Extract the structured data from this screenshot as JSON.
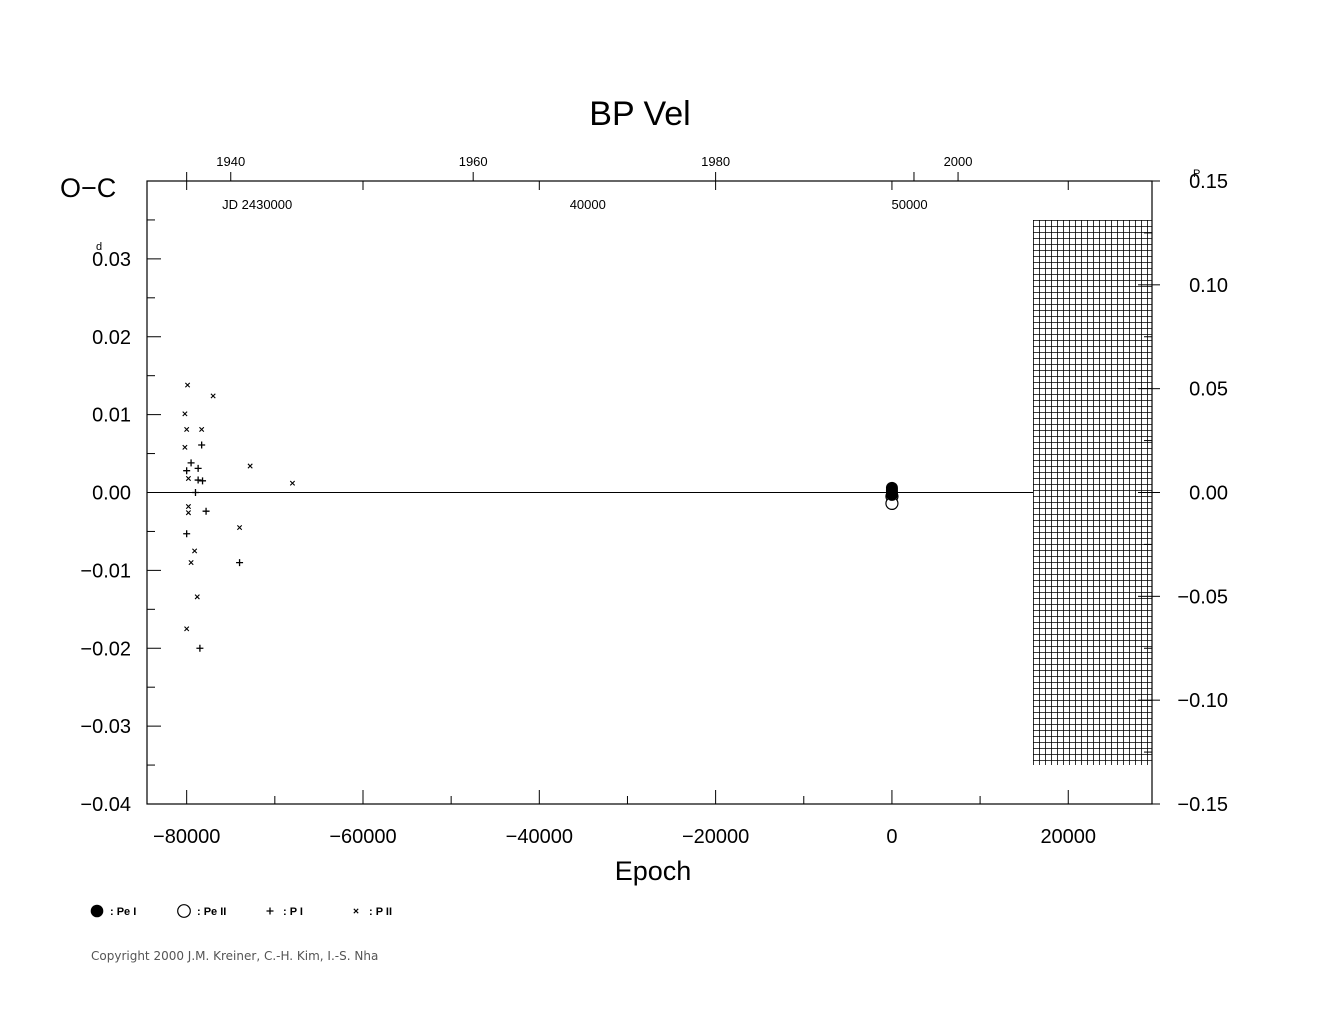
{
  "chart_data": {
    "type": "scatter",
    "title": "BP  Vel",
    "ylabel": "O−C",
    "ylabel_unit": "d",
    "xlabel": "Epoch",
    "xlim": [
      -84500,
      29500
    ],
    "ylim": [
      -0.04,
      0.04
    ],
    "xticks": [
      -80000,
      -60000,
      -40000,
      -20000,
      0,
      20000
    ],
    "xtick_labels": [
      "−80000",
      "−60000",
      "−40000",
      "−20000",
      "0",
      "20000"
    ],
    "yticks": [
      0.03,
      0.02,
      0.01,
      0.0,
      -0.01,
      -0.02,
      -0.03,
      -0.04
    ],
    "ytick_labels": [
      "0.03",
      "0.02",
      "0.01",
      "0.00",
      "−0.01",
      "−0.02",
      "−0.03",
      "−0.04"
    ],
    "right_axis": {
      "unit": "P",
      "lim": [
        -0.15,
        0.15
      ],
      "ticks": [
        0.15,
        0.1,
        0.05,
        0.0,
        -0.05,
        -0.1,
        -0.15
      ],
      "tick_labels": [
        "0.15",
        "0.10",
        "0.05",
        "0.00",
        "−0.05",
        "−0.10",
        "−0.15"
      ]
    },
    "top_year_axis": {
      "labels": [
        {
          "epoch": -75000,
          "text": "1940"
        },
        {
          "epoch": -47500,
          "text": "1960"
        },
        {
          "epoch": -20000,
          "text": "1980"
        },
        {
          "epoch": 7500,
          "text": "2000"
        }
      ],
      "ticks": [
        -80000,
        -75000,
        -47500,
        -20000,
        2500,
        7500
      ]
    },
    "top_jd_axis": {
      "labels": [
        {
          "epoch": -72000,
          "text": "JD  2430000"
        },
        {
          "epoch": -34500,
          "text": "40000"
        },
        {
          "epoch": 2000,
          "text": "50000"
        }
      ]
    },
    "grid_region": {
      "x_from": 16000,
      "x_to": 29500,
      "y_from": -0.035,
      "y_to": 0.035
    },
    "series": [
      {
        "name": "Pe I",
        "marker": "filled-circle",
        "points": [
          [
            0,
            0.0006
          ],
          [
            0,
            0.0003
          ],
          [
            0,
            0.0
          ],
          [
            0,
            -0.0003
          ]
        ]
      },
      {
        "name": "Pe II",
        "marker": "open-circle",
        "points": [
          [
            0,
            -0.0005
          ],
          [
            0,
            -0.0014
          ]
        ]
      },
      {
        "name": "P I",
        "marker": "plus",
        "points": [
          [
            -80000,
            0.0028
          ],
          [
            -79500,
            0.0038
          ],
          [
            -78700,
            0.0031
          ],
          [
            -78300,
            0.0061
          ],
          [
            -78700,
            0.0016
          ],
          [
            -78200,
            0.0015
          ],
          [
            -79000,
            0.0
          ],
          [
            -77800,
            -0.0024
          ],
          [
            -80000,
            -0.0053
          ],
          [
            -74000,
            -0.009
          ],
          [
            -78500,
            -0.02
          ]
        ]
      },
      {
        "name": "P II",
        "marker": "x",
        "points": [
          [
            -79900,
            0.0138
          ],
          [
            -80200,
            0.0101
          ],
          [
            -80000,
            0.0081
          ],
          [
            -78300,
            0.0081
          ],
          [
            -77000,
            0.0124
          ],
          [
            -80200,
            0.0058
          ],
          [
            -79800,
            0.0018
          ],
          [
            -72800,
            0.0034
          ],
          [
            -68000,
            0.0012
          ],
          [
            -79800,
            -0.0018
          ],
          [
            -79800,
            -0.0026
          ],
          [
            -74000,
            -0.0045
          ],
          [
            -79100,
            -0.0075
          ],
          [
            -79500,
            -0.009
          ],
          [
            -78800,
            -0.0134
          ],
          [
            -80000,
            -0.0175
          ]
        ]
      }
    ],
    "legend": [
      {
        "marker": "filled-circle",
        "label": ": Pe I"
      },
      {
        "marker": "open-circle",
        "label": ": Pe II"
      },
      {
        "marker": "plus",
        "label": ": P I"
      },
      {
        "marker": "x",
        "label": ": P II"
      }
    ]
  },
  "copyright": "Copyright 2000 J.M. Kreiner, C.-H. Kim, I.-S. Nha"
}
